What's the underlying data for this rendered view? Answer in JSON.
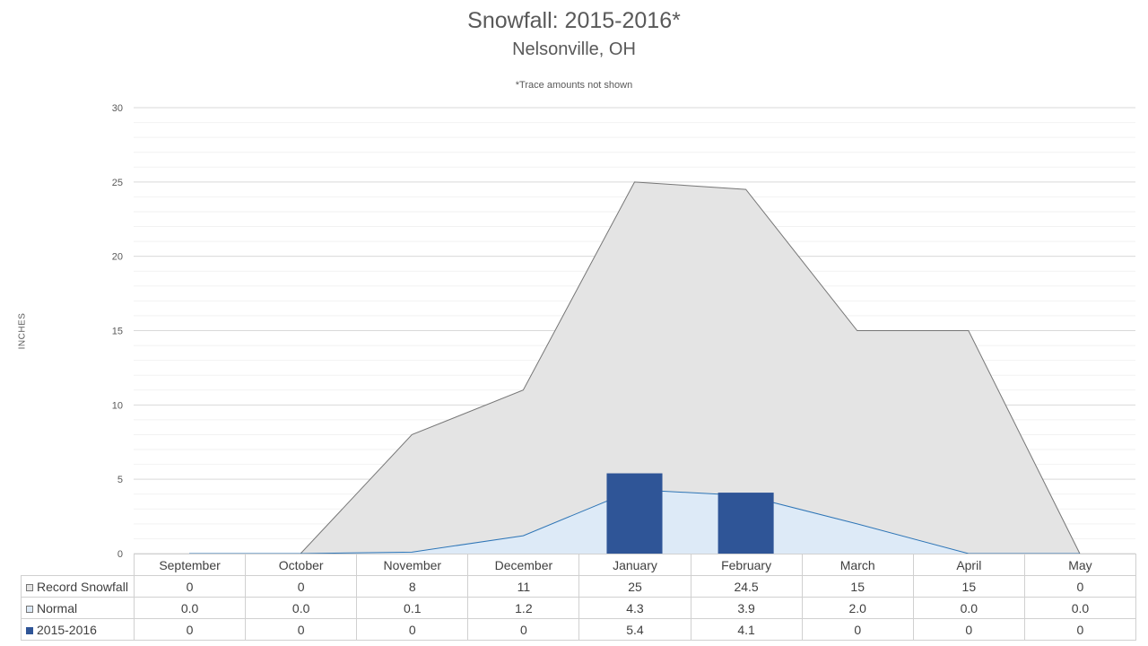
{
  "chart_data": {
    "type": "area",
    "title": "Snowfall: 2015-2016*",
    "subtitle": "Nelsonville, OH",
    "note": "*Trace amounts not shown",
    "ylabel": "INCHES",
    "ylim": [
      0,
      30
    ],
    "yticks": [
      0,
      5,
      10,
      15,
      20,
      25,
      30
    ],
    "grid": true,
    "categories": [
      "September",
      "October",
      "November",
      "December",
      "January",
      "February",
      "March",
      "April",
      "May"
    ],
    "series": [
      {
        "name": "Record Snowfall",
        "type": "area",
        "color": "#e4e4e4",
        "stroke": "#767676",
        "values": [
          0,
          0,
          8,
          11,
          25,
          24.5,
          15,
          15,
          0
        ],
        "labels": [
          "0",
          "0",
          "8",
          "11",
          "25",
          "24.5",
          "15",
          "15",
          "0"
        ]
      },
      {
        "name": "Normal",
        "type": "area",
        "color": "#ddeaf7",
        "stroke": "#2e75b6",
        "values": [
          0.0,
          0.0,
          0.1,
          1.2,
          4.3,
          3.9,
          2.0,
          0.0,
          0.0
        ],
        "labels": [
          "0.0",
          "0.0",
          "0.1",
          "1.2",
          "4.3",
          "3.9",
          "2.0",
          "0.0",
          "0.0"
        ]
      },
      {
        "name": "2015-2016",
        "type": "bar",
        "color": "#2f5597",
        "values": [
          0,
          0,
          0,
          0,
          5.4,
          4.1,
          0,
          0,
          0
        ],
        "labels": [
          "0",
          "0",
          "0",
          "0",
          "5.4",
          "4.1",
          "0",
          "0",
          "0"
        ]
      }
    ]
  }
}
